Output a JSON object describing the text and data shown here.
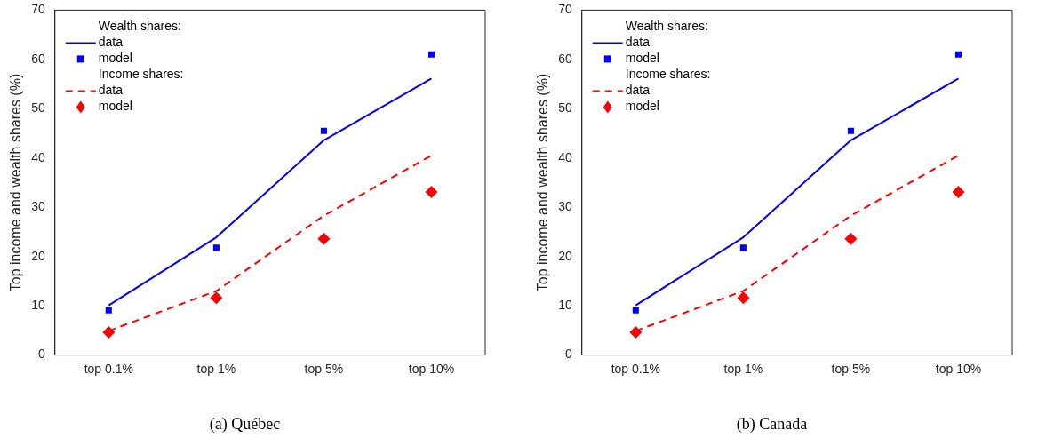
{
  "chart_data": [
    {
      "type": "line",
      "title": "(a) Québec",
      "ylabel": "Top income and wealth shares (%)",
      "categories": [
        "top 0.1%",
        "top 1%",
        "top 5%",
        "top 10%"
      ],
      "series": [
        {
          "name": "data",
          "type": "line",
          "color": "#0000ff",
          "line_style": "solid",
          "marker": "none",
          "values": [
            10.1,
            23.9,
            43.6,
            56.1
          ]
        },
        {
          "name": "model",
          "type": "scatter",
          "color": "#0000ff",
          "marker": "square",
          "values": [
            9.1,
            21.8,
            45.5,
            61.0
          ]
        },
        {
          "name": "data",
          "type": "line",
          "color": "#ff0000",
          "line_style": "dashed",
          "marker": "none",
          "values": [
            4.9,
            13.0,
            28.3,
            40.5
          ]
        },
        {
          "name": "model",
          "type": "scatter",
          "color": "#ff0000",
          "marker": "diamond",
          "values": [
            4.6,
            11.6,
            23.6,
            33.1
          ]
        }
      ],
      "annotations": [
        "Wealth shares:",
        "Income shares:"
      ],
      "legend": "top left",
      "grid": false,
      "ylim": [
        0,
        70
      ],
      "yticks": [
        0,
        10,
        20,
        30,
        40,
        50,
        60,
        70
      ]
    },
    {
      "type": "line",
      "title": "(b) Canada",
      "ylabel": "Top income and wealth shares (%)",
      "categories": [
        "top 0.1%",
        "top 1%",
        "top 5%",
        "top 10%"
      ],
      "series": [
        {
          "name": "data",
          "type": "line",
          "color": "#0000ff",
          "line_style": "solid",
          "marker": "none",
          "values": [
            10.1,
            23.9,
            43.6,
            56.1
          ]
        },
        {
          "name": "model",
          "type": "scatter",
          "color": "#0000ff",
          "marker": "square",
          "values": [
            9.1,
            21.8,
            45.5,
            61.0
          ]
        },
        {
          "name": "data",
          "type": "line",
          "color": "#ff0000",
          "line_style": "dashed",
          "marker": "none",
          "values": [
            4.9,
            13.0,
            28.3,
            40.5
          ]
        },
        {
          "name": "model",
          "type": "scatter",
          "color": "#ff0000",
          "marker": "diamond",
          "values": [
            4.6,
            11.6,
            23.6,
            33.1
          ]
        }
      ],
      "annotations": [
        "Wealth shares:",
        "Income shares:"
      ],
      "legend": "top left",
      "grid": false,
      "ylim": [
        0,
        70
      ],
      "yticks": [
        0,
        10,
        20,
        30,
        40,
        50,
        60,
        70
      ]
    }
  ]
}
